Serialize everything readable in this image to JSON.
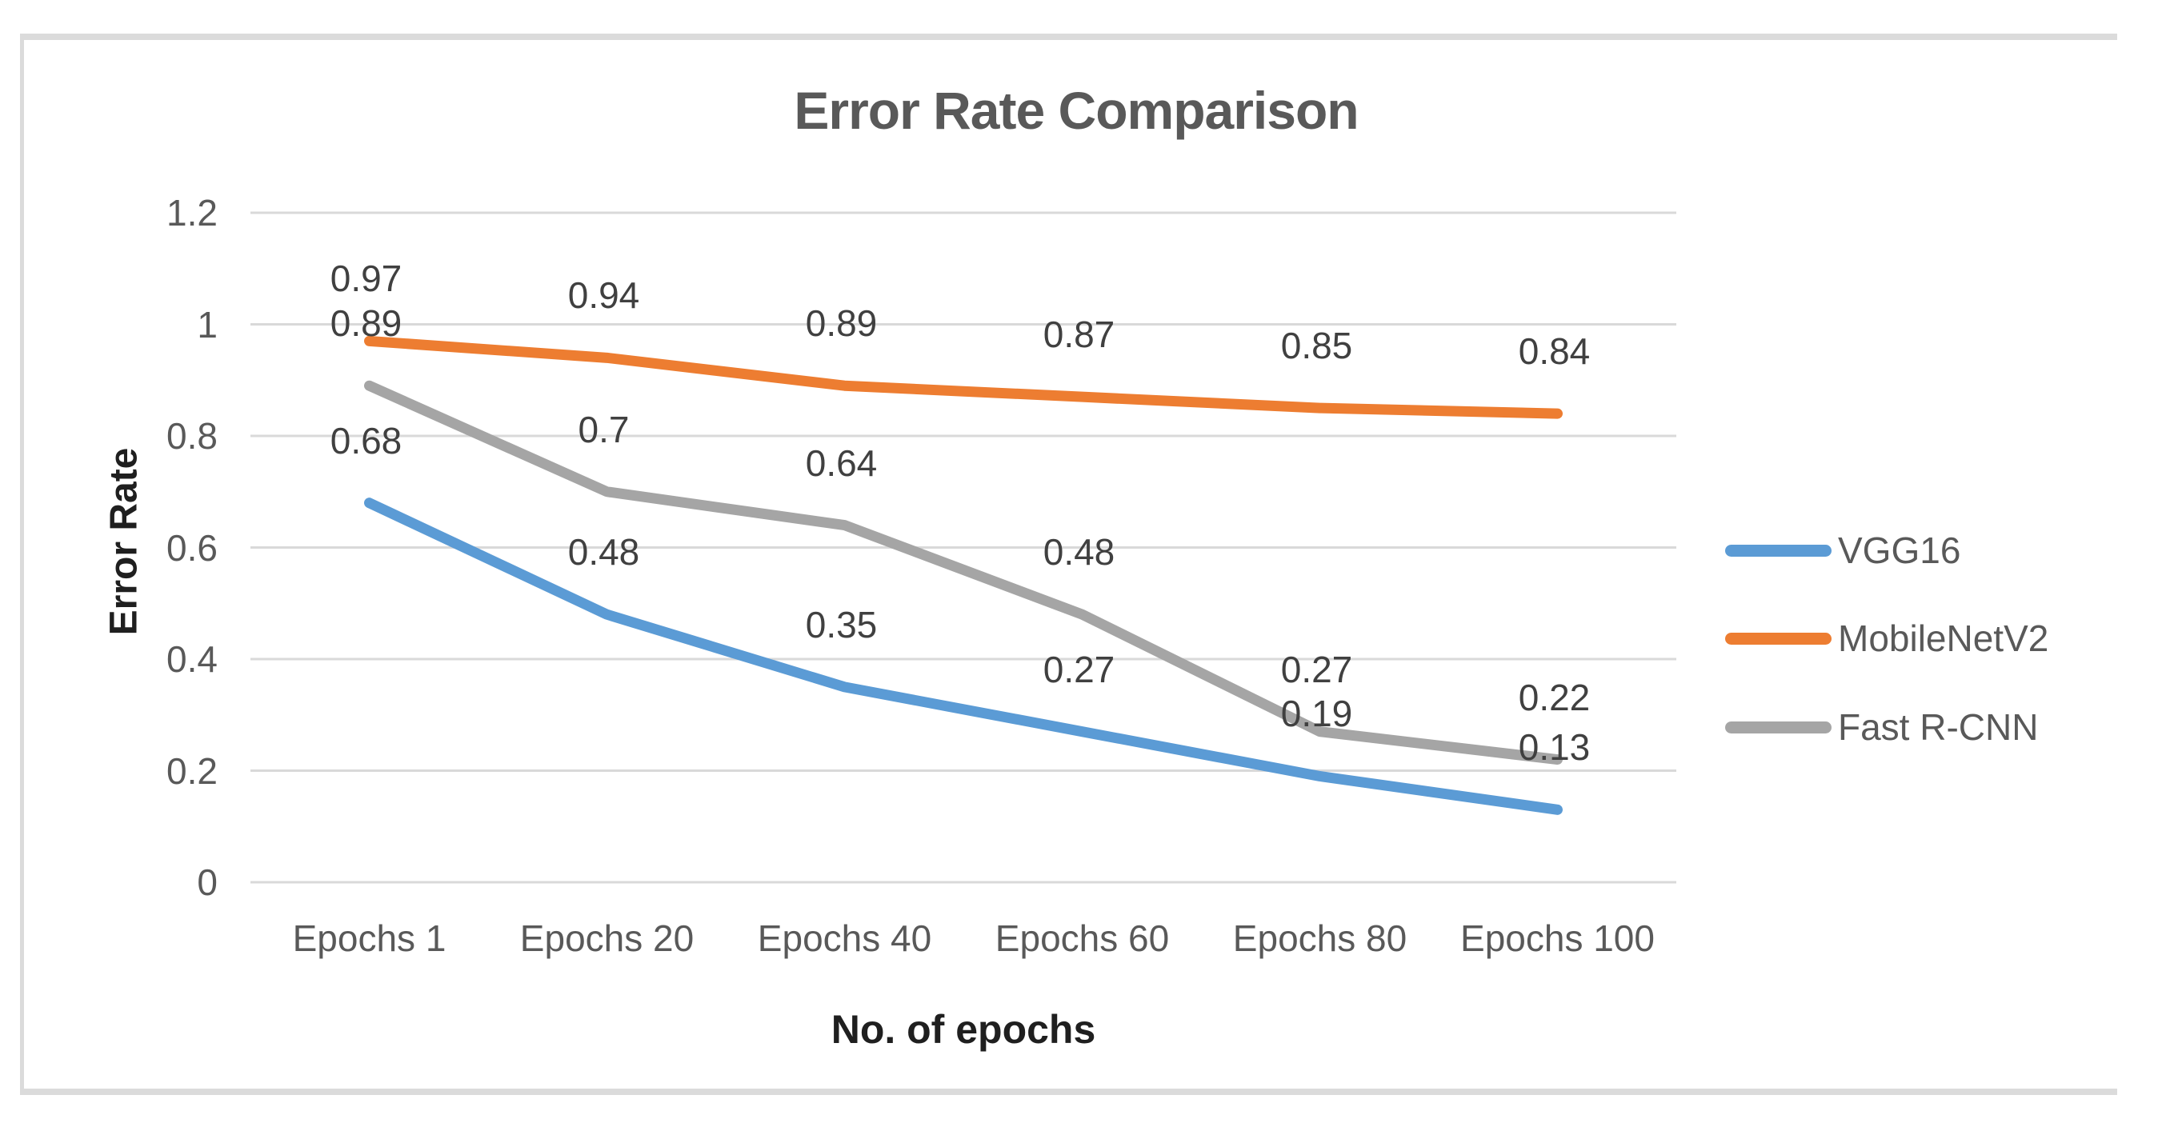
{
  "title": "Error Rate Comparison",
  "chart_data": {
    "type": "line",
    "title": "Error Rate Comparison",
    "xlabel": "No. of epochs",
    "ylabel": "Error Rate",
    "categories": [
      "Epochs 1",
      "Epochs 20",
      "Epochs 40",
      "Epochs 60",
      "Epochs 80",
      "Epochs 100"
    ],
    "yticks": [
      "0",
      "0.2",
      "0.4",
      "0.6",
      "0.8",
      "1",
      "1.2"
    ],
    "ylim": [
      0,
      1.2
    ],
    "grid": true,
    "legend_position": "right",
    "series": [
      {
        "name": "VGG16",
        "color": "#5B9BD5",
        "values": [
          0.68,
          0.48,
          0.35,
          0.27,
          0.19,
          0.13
        ],
        "labels": [
          "0.68",
          "0.48",
          "0.35",
          "0.27",
          "0.19",
          "0.13"
        ]
      },
      {
        "name": "MobileNetV2",
        "color": "#ED7D31",
        "values": [
          0.97,
          0.94,
          0.89,
          0.87,
          0.85,
          0.84
        ],
        "labels": [
          "0.97",
          "0.94",
          "0.89",
          "0.87",
          "0.85",
          "0.84"
        ]
      },
      {
        "name": "Fast R-CNN",
        "color": "#A5A5A5",
        "values": [
          0.89,
          0.7,
          0.64,
          0.48,
          0.27,
          0.22
        ],
        "labels": [
          "0.89",
          "0.7",
          "0.64",
          "0.48",
          "0.27",
          "0.22"
        ]
      }
    ]
  }
}
